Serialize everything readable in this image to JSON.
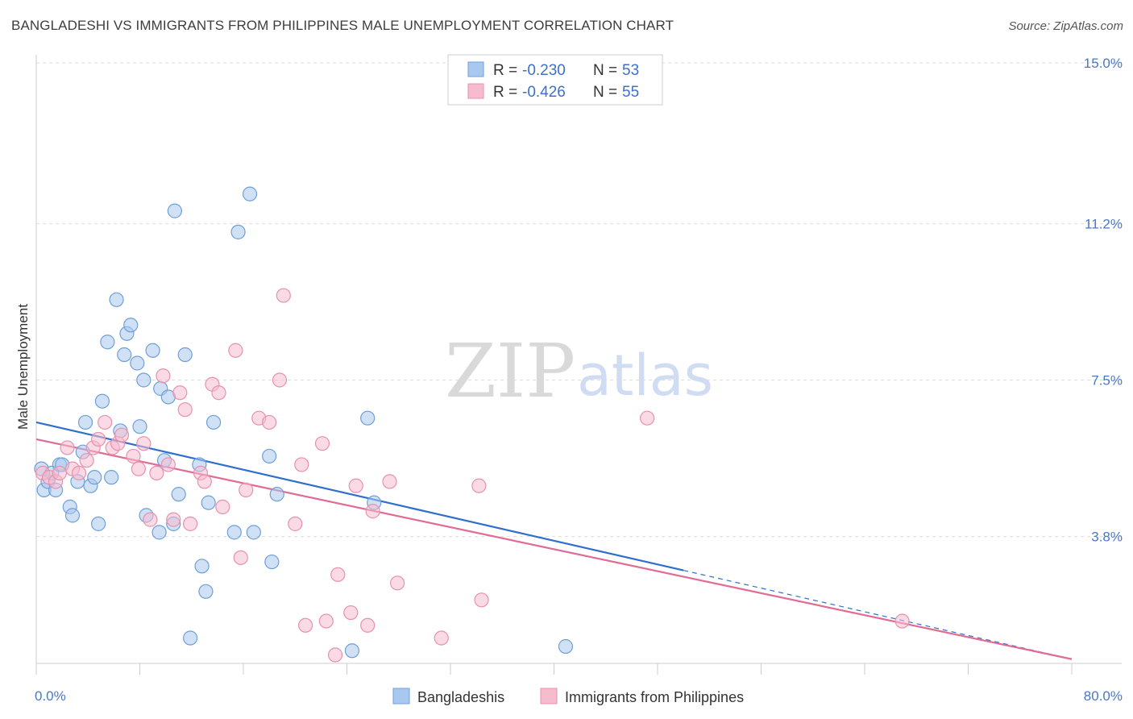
{
  "header": {
    "title": "BANGLADESHI VS IMMIGRANTS FROM PHILIPPINES MALE UNEMPLOYMENT CORRELATION CHART",
    "source": "Source: ZipAtlas.com"
  },
  "legend": {
    "rows": [
      {
        "r_label": "R = ",
        "r_value": "-0.230",
        "n_label": "N = ",
        "n_value": "53"
      },
      {
        "r_label": "R = ",
        "r_value": "-0.426",
        "n_label": "N = ",
        "n_value": "55"
      }
    ]
  },
  "watermark": {
    "zip": "ZIP",
    "atlas": "atlas"
  },
  "colors": {
    "blue_fill": "#a9c8ef",
    "blue_stroke": "#6f9fd8",
    "blue_line": "#2f6fcc",
    "pink_fill": "#f6bccd",
    "pink_stroke": "#e891ad",
    "pink_line": "#e06b95",
    "grid": "#dddddd",
    "tick_text": "#4a78c4"
  },
  "chart_data": {
    "type": "scatter",
    "title": "BANGLADESHI VS IMMIGRANTS FROM PHILIPPINES MALE UNEMPLOYMENT CORRELATION CHART",
    "xlabel": "",
    "ylabel": "Male Unemployment",
    "xlim": [
      0,
      80
    ],
    "ylim": [
      0.8,
      15.0
    ],
    "x_tick_labels": [
      "0.0%",
      "80.0%"
    ],
    "y_ticks": [
      3.8,
      7.5,
      11.2,
      15.0
    ],
    "y_tick_labels": [
      "3.8%",
      "7.5%",
      "11.2%",
      "15.0%"
    ],
    "grid": true,
    "legend_position": "top-center",
    "series": [
      {
        "name": "Bangladeshis",
        "r": -0.23,
        "n": 53,
        "points": [
          [
            0.4,
            5.4
          ],
          [
            0.6,
            4.9
          ],
          [
            0.9,
            5.1
          ],
          [
            1.2,
            5.3
          ],
          [
            1.5,
            4.9
          ],
          [
            1.8,
            5.5
          ],
          [
            2.0,
            5.5
          ],
          [
            2.6,
            4.5
          ],
          [
            2.8,
            4.3
          ],
          [
            3.2,
            5.1
          ],
          [
            3.6,
            5.8
          ],
          [
            3.8,
            6.5
          ],
          [
            4.2,
            5.0
          ],
          [
            4.5,
            5.2
          ],
          [
            4.8,
            4.1
          ],
          [
            5.1,
            7.0
          ],
          [
            5.5,
            8.4
          ],
          [
            5.8,
            5.2
          ],
          [
            6.2,
            9.4
          ],
          [
            6.5,
            6.3
          ],
          [
            6.8,
            8.1
          ],
          [
            7.0,
            8.6
          ],
          [
            7.3,
            8.8
          ],
          [
            7.8,
            7.9
          ],
          [
            8.0,
            6.4
          ],
          [
            8.3,
            7.5
          ],
          [
            8.5,
            4.3
          ],
          [
            9.0,
            8.2
          ],
          [
            9.5,
            3.9
          ],
          [
            9.6,
            7.3
          ],
          [
            9.9,
            5.6
          ],
          [
            10.2,
            7.1
          ],
          [
            10.6,
            4.1
          ],
          [
            10.7,
            11.5
          ],
          [
            11.0,
            4.8
          ],
          [
            11.5,
            8.1
          ],
          [
            11.9,
            1.4
          ],
          [
            12.6,
            5.5
          ],
          [
            12.8,
            3.1
          ],
          [
            13.1,
            2.5
          ],
          [
            13.3,
            4.6
          ],
          [
            13.7,
            6.5
          ],
          [
            15.3,
            3.9
          ],
          [
            15.6,
            11.0
          ],
          [
            16.5,
            11.9
          ],
          [
            16.8,
            3.9
          ],
          [
            18.0,
            5.7
          ],
          [
            18.2,
            3.2
          ],
          [
            18.6,
            4.8
          ],
          [
            24.4,
            1.1
          ],
          [
            25.6,
            6.6
          ],
          [
            26.1,
            4.6
          ],
          [
            40.9,
            1.2
          ]
        ]
      },
      {
        "name": "Immigrants from Philippines",
        "r": -0.426,
        "n": 55,
        "points": [
          [
            0.5,
            5.3
          ],
          [
            1.0,
            5.2
          ],
          [
            1.5,
            5.1
          ],
          [
            1.8,
            5.3
          ],
          [
            2.4,
            5.9
          ],
          [
            2.8,
            5.4
          ],
          [
            3.3,
            5.3
          ],
          [
            3.9,
            5.6
          ],
          [
            4.4,
            5.9
          ],
          [
            4.8,
            6.1
          ],
          [
            5.3,
            6.5
          ],
          [
            5.9,
            5.9
          ],
          [
            6.3,
            6.0
          ],
          [
            6.6,
            6.2
          ],
          [
            7.5,
            5.7
          ],
          [
            7.9,
            5.4
          ],
          [
            8.3,
            6.0
          ],
          [
            8.8,
            4.2
          ],
          [
            9.3,
            5.3
          ],
          [
            9.8,
            7.6
          ],
          [
            10.2,
            5.5
          ],
          [
            10.6,
            4.2
          ],
          [
            11.1,
            7.2
          ],
          [
            11.5,
            6.8
          ],
          [
            11.9,
            4.1
          ],
          [
            12.7,
            5.3
          ],
          [
            13.0,
            5.1
          ],
          [
            13.6,
            7.4
          ],
          [
            14.1,
            7.2
          ],
          [
            14.4,
            4.5
          ],
          [
            15.4,
            8.2
          ],
          [
            15.8,
            3.3
          ],
          [
            16.2,
            4.9
          ],
          [
            17.2,
            6.6
          ],
          [
            18.0,
            6.5
          ],
          [
            18.8,
            7.5
          ],
          [
            19.1,
            9.5
          ],
          [
            20.0,
            4.1
          ],
          [
            20.5,
            5.5
          ],
          [
            20.8,
            1.7
          ],
          [
            22.1,
            6.0
          ],
          [
            22.4,
            1.8
          ],
          [
            23.1,
            1.0
          ],
          [
            23.3,
            2.9
          ],
          [
            24.3,
            2.0
          ],
          [
            24.7,
            5.0
          ],
          [
            25.6,
            1.7
          ],
          [
            26.0,
            4.4
          ],
          [
            27.3,
            5.1
          ],
          [
            27.9,
            2.7
          ],
          [
            31.3,
            1.4
          ],
          [
            34.2,
            5.0
          ],
          [
            34.4,
            2.3
          ],
          [
            47.2,
            6.6
          ],
          [
            66.9,
            1.8
          ]
        ]
      }
    ],
    "trendlines": [
      {
        "series": "Bangladeshis",
        "x0": 0,
        "y0": 6.5,
        "x1": 50,
        "y1": 3.0,
        "dashed_extension_to_x": 80,
        "dashed_extension_y": 0.9
      },
      {
        "series": "Immigrants from Philippines",
        "x0": 0,
        "y0": 6.1,
        "x1": 80,
        "y1": 0.9
      }
    ]
  },
  "bottom_legend": {
    "items": [
      {
        "label": "Bangladeshis"
      },
      {
        "label": "Immigrants from Philippines"
      }
    ]
  }
}
